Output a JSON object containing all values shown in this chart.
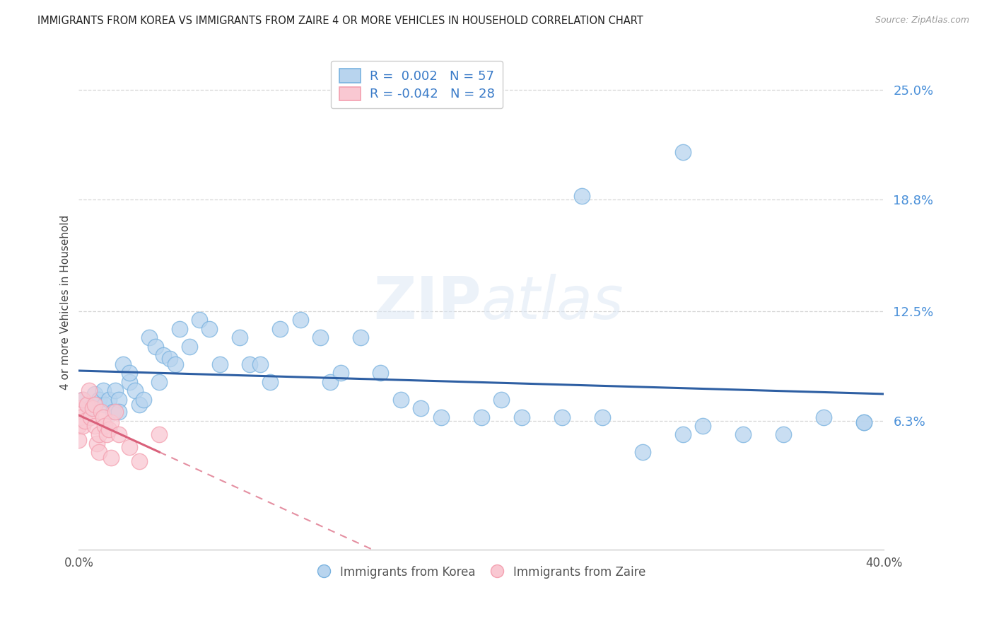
{
  "title": "IMMIGRANTS FROM KOREA VS IMMIGRANTS FROM ZAIRE 4 OR MORE VEHICLES IN HOUSEHOLD CORRELATION CHART",
  "source": "Source: ZipAtlas.com",
  "ylabel": "4 or more Vehicles in Household",
  "xlim": [
    0.0,
    0.4
  ],
  "ylim": [
    -0.01,
    0.27
  ],
  "ytick_labels": [
    "6.3%",
    "12.5%",
    "18.8%",
    "25.0%"
  ],
  "ytick_vals": [
    0.063,
    0.125,
    0.188,
    0.25
  ],
  "grid_color": "#cccccc",
  "background_color": "#ffffff",
  "korea_color": "#7ab3e0",
  "korea_fill": "#b8d4ee",
  "zaire_color": "#f4a0b0",
  "zaire_fill": "#f9c8d2",
  "korea_R": "0.002",
  "korea_N": "57",
  "zaire_R": "-0.042",
  "zaire_N": "28",
  "korea_line_color": "#2e5fa3",
  "zaire_line_color": "#d9607a",
  "watermark": "ZIPatlas",
  "korea_points_x": [
    0.002,
    0.005,
    0.008,
    0.01,
    0.012,
    0.013,
    0.015,
    0.017,
    0.018,
    0.02,
    0.02,
    0.022,
    0.025,
    0.025,
    0.028,
    0.03,
    0.032,
    0.035,
    0.038,
    0.04,
    0.042,
    0.045,
    0.048,
    0.05,
    0.055,
    0.06,
    0.065,
    0.07,
    0.08,
    0.085,
    0.09,
    0.095,
    0.1,
    0.11,
    0.12,
    0.125,
    0.13,
    0.14,
    0.15,
    0.16,
    0.17,
    0.18,
    0.2,
    0.21,
    0.22,
    0.24,
    0.26,
    0.28,
    0.3,
    0.31,
    0.33,
    0.35,
    0.37,
    0.39,
    0.25,
    0.3,
    0.39
  ],
  "korea_points_y": [
    0.075,
    0.07,
    0.078,
    0.075,
    0.08,
    0.072,
    0.075,
    0.068,
    0.08,
    0.075,
    0.068,
    0.095,
    0.085,
    0.09,
    0.08,
    0.072,
    0.075,
    0.11,
    0.105,
    0.085,
    0.1,
    0.098,
    0.095,
    0.115,
    0.105,
    0.12,
    0.115,
    0.095,
    0.11,
    0.095,
    0.095,
    0.085,
    0.115,
    0.12,
    0.11,
    0.085,
    0.09,
    0.11,
    0.09,
    0.075,
    0.07,
    0.065,
    0.065,
    0.075,
    0.065,
    0.065,
    0.065,
    0.045,
    0.055,
    0.06,
    0.055,
    0.055,
    0.065,
    0.062,
    0.19,
    0.215,
    0.062
  ],
  "zaire_points_x": [
    0.0,
    0.0,
    0.0,
    0.001,
    0.002,
    0.002,
    0.003,
    0.004,
    0.005,
    0.006,
    0.007,
    0.008,
    0.008,
    0.009,
    0.01,
    0.01,
    0.011,
    0.012,
    0.013,
    0.014,
    0.015,
    0.016,
    0.016,
    0.018,
    0.02,
    0.025,
    0.03,
    0.04
  ],
  "zaire_points_y": [
    0.07,
    0.06,
    0.052,
    0.065,
    0.075,
    0.06,
    0.063,
    0.072,
    0.08,
    0.065,
    0.07,
    0.072,
    0.06,
    0.05,
    0.055,
    0.045,
    0.068,
    0.065,
    0.06,
    0.055,
    0.058,
    0.062,
    0.042,
    0.068,
    0.055,
    0.048,
    0.04,
    0.055
  ]
}
